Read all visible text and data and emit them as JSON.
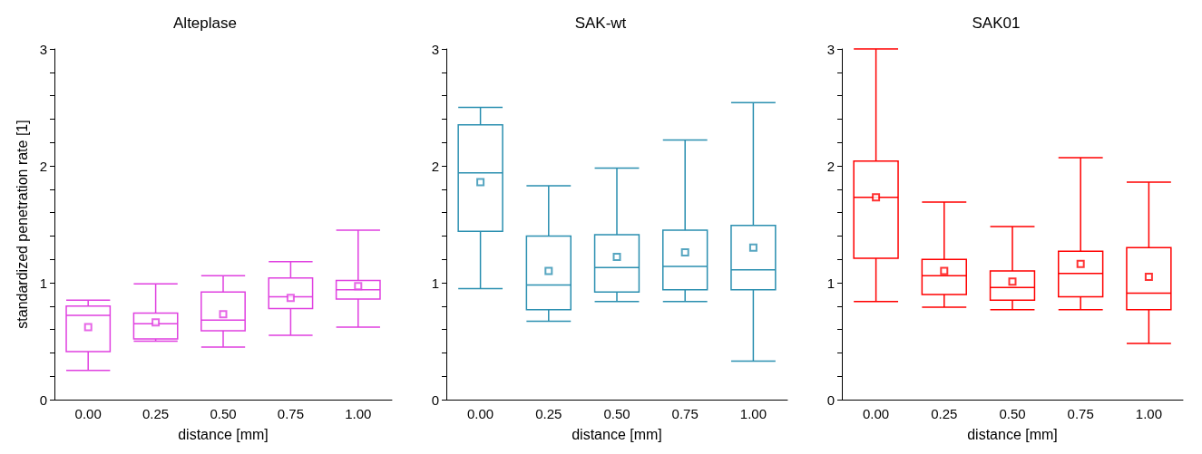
{
  "chart_data": [
    {
      "type": "box",
      "title": "Alteplase",
      "xlabel": "distance [mm]",
      "ylabel": "standardized penetration rate [1]",
      "categories": [
        "0.00",
        "0.25",
        "0.50",
        "0.75",
        "1.00"
      ],
      "ylim": [
        0,
        3
      ],
      "yticks": [
        0,
        {
          "value": 0.2,
          "label": null
        },
        {
          "value": 0.4,
          "label": null
        },
        {
          "value": 0.6,
          "label": null
        },
        {
          "value": 0.8,
          "label": null
        },
        1,
        {
          "value": 1.2,
          "label": null
        },
        {
          "value": 1.4,
          "label": null
        },
        {
          "value": 1.6,
          "label": null
        },
        {
          "value": 1.8,
          "label": null
        },
        2,
        {
          "value": 2.2,
          "label": null
        },
        {
          "value": 2.4,
          "label": null
        },
        {
          "value": 2.6,
          "label": null
        },
        {
          "value": 2.8,
          "label": null
        },
        3
      ],
      "grid": false,
      "marker": "square",
      "series": [
        {
          "color": "#e040e0",
          "boxes": [
            {
              "low": 0.25,
              "q1": 0.41,
              "median": 0.72,
              "q3": 0.8,
              "high": 0.85,
              "mean": 0.62
            },
            {
              "low": 0.5,
              "q1": 0.52,
              "median": 0.65,
              "q3": 0.74,
              "high": 0.99,
              "mean": 0.66
            },
            {
              "low": 0.45,
              "q1": 0.59,
              "median": 0.68,
              "q3": 0.92,
              "high": 1.06,
              "mean": 0.73
            },
            {
              "low": 0.55,
              "q1": 0.78,
              "median": 0.88,
              "q3": 1.04,
              "high": 1.18,
              "mean": 0.87
            },
            {
              "low": 0.62,
              "q1": 0.86,
              "median": 0.94,
              "q3": 1.02,
              "high": 1.45,
              "mean": 0.97
            }
          ]
        }
      ]
    },
    {
      "type": "box",
      "title": "SAK-wt",
      "xlabel": "distance [mm]",
      "categories": [
        "0.00",
        "0.25",
        "0.50",
        "0.75",
        "1.00"
      ],
      "ylim": [
        0,
        3
      ],
      "yticks": [
        0,
        {
          "value": 0.2,
          "label": null
        },
        {
          "value": 0.4,
          "label": null
        },
        {
          "value": 0.6,
          "label": null
        },
        {
          "value": 0.8,
          "label": null
        },
        1,
        {
          "value": 1.2,
          "label": null
        },
        {
          "value": 1.4,
          "label": null
        },
        {
          "value": 1.6,
          "label": null
        },
        {
          "value": 1.8,
          "label": null
        },
        2,
        {
          "value": 2.2,
          "label": null
        },
        {
          "value": 2.4,
          "label": null
        },
        {
          "value": 2.6,
          "label": null
        },
        {
          "value": 2.8,
          "label": null
        },
        3
      ],
      "grid": false,
      "marker": "square",
      "series": [
        {
          "color": "#2a8fb0",
          "boxes": [
            {
              "low": 0.95,
              "q1": 1.44,
              "median": 1.94,
              "q3": 2.35,
              "high": 2.5,
              "mean": 1.86
            },
            {
              "low": 0.67,
              "q1": 0.77,
              "median": 0.98,
              "q3": 1.4,
              "high": 1.83,
              "mean": 1.1
            },
            {
              "low": 0.84,
              "q1": 0.92,
              "median": 1.13,
              "q3": 1.41,
              "high": 1.98,
              "mean": 1.22
            },
            {
              "low": 0.84,
              "q1": 0.94,
              "median": 1.14,
              "q3": 1.45,
              "high": 2.22,
              "mean": 1.26
            },
            {
              "low": 0.33,
              "q1": 0.94,
              "median": 1.11,
              "q3": 1.49,
              "high": 2.54,
              "mean": 1.3
            }
          ]
        }
      ]
    },
    {
      "type": "box",
      "title": "SAK01",
      "xlabel": "distance [mm]",
      "categories": [
        "0.00",
        "0.25",
        "0.50",
        "0.75",
        "1.00"
      ],
      "ylim": [
        0,
        3
      ],
      "yticks": [
        0,
        {
          "value": 0.2,
          "label": null
        },
        {
          "value": 0.4,
          "label": null
        },
        {
          "value": 0.6,
          "label": null
        },
        {
          "value": 0.8,
          "label": null
        },
        1,
        {
          "value": 1.2,
          "label": null
        },
        {
          "value": 1.4,
          "label": null
        },
        {
          "value": 1.6,
          "label": null
        },
        {
          "value": 1.8,
          "label": null
        },
        2,
        {
          "value": 2.2,
          "label": null
        },
        {
          "value": 2.4,
          "label": null
        },
        {
          "value": 2.6,
          "label": null
        },
        {
          "value": 2.8,
          "label": null
        },
        3
      ],
      "grid": false,
      "marker": "square",
      "series": [
        {
          "color": "#ff0000",
          "boxes": [
            {
              "low": 0.84,
              "q1": 1.21,
              "median": 1.73,
              "q3": 2.04,
              "high": 3.0,
              "mean": 1.73
            },
            {
              "low": 0.79,
              "q1": 0.9,
              "median": 1.06,
              "q3": 1.2,
              "high": 1.69,
              "mean": 1.1
            },
            {
              "low": 0.77,
              "q1": 0.85,
              "median": 0.96,
              "q3": 1.1,
              "high": 1.48,
              "mean": 1.01
            },
            {
              "low": 0.77,
              "q1": 0.88,
              "median": 1.08,
              "q3": 1.27,
              "high": 2.07,
              "mean": 1.16
            },
            {
              "low": 0.48,
              "q1": 0.77,
              "median": 0.91,
              "q3": 1.3,
              "high": 1.86,
              "mean": 1.05
            }
          ]
        }
      ]
    }
  ]
}
